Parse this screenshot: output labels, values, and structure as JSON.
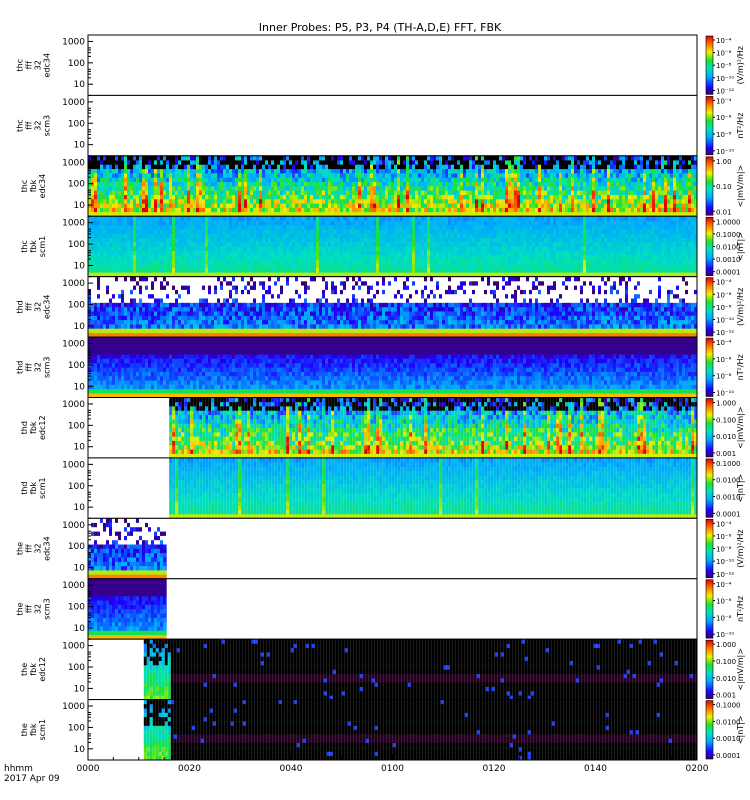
{
  "chart_data": {
    "type": "heatmap",
    "title": "Inner Probes: P5, P3, P4 (TH-A,D,E) FFT, FBK",
    "x_axis": {
      "label": "hhmm",
      "date_label": "2017 Apr 09",
      "range": [
        "0000",
        "0200"
      ],
      "ticks": [
        "0000",
        "0020",
        "0040",
        "0100",
        "0120",
        "0140",
        "0200"
      ]
    },
    "y_ticks": [
      "1000",
      "100",
      "10"
    ],
    "y_range_hz": [
      3,
      2000
    ],
    "y_scale": "log",
    "colormap": "rainbow",
    "panels": [
      {
        "ylabel": [
          "thc",
          "fff",
          "32",
          "edc34"
        ],
        "cbar": {
          "label": "(V/m)²/Hz",
          "ticks": [
            "10⁻⁴",
            "10⁻⁶",
            "10⁻⁸",
            "10⁻¹⁰",
            "10⁻¹²"
          ]
        },
        "data": {
          "start_min": null,
          "end_min": null,
          "pattern": "none"
        }
      },
      {
        "ylabel": [
          "thc",
          "fff",
          "32",
          "scm3"
        ],
        "cbar": {
          "label": "nT²/Hz",
          "ticks": [
            "10⁻⁴",
            "10⁻⁶",
            "10⁻⁸",
            "10⁻¹⁰"
          ]
        },
        "data": {
          "start_min": null,
          "end_min": null,
          "pattern": "none"
        }
      },
      {
        "ylabel": [
          "thc",
          "fbk",
          "edc34"
        ],
        "cbar": {
          "label": "<|mV/m|>",
          "ticks": [
            "1.00",
            "0.10",
            "0.01"
          ]
        },
        "data": {
          "start_min": 0,
          "end_min": 120,
          "pattern": "fbk-e"
        }
      },
      {
        "ylabel": [
          "thc",
          "fbk",
          "scm1"
        ],
        "cbar": {
          "label": "<|nT|>",
          "ticks": [
            "1.0000",
            "0.1000",
            "0.0100",
            "0.0010",
            "0.0001"
          ]
        },
        "data": {
          "start_min": 0,
          "end_min": 120,
          "pattern": "fbk-b"
        }
      },
      {
        "ylabel": [
          "thd",
          "fff",
          "32",
          "edc34"
        ],
        "cbar": {
          "label": "(V/m)²/Hz",
          "ticks": [
            "10⁻⁴",
            "10⁻⁶",
            "10⁻⁸",
            "10⁻¹⁰",
            "10⁻¹²"
          ]
        },
        "data": {
          "start_min": 0,
          "end_min": 120,
          "pattern": "fff-e"
        }
      },
      {
        "ylabel": [
          "thd",
          "fff",
          "32",
          "scm3"
        ],
        "cbar": {
          "label": "nT²/Hz",
          "ticks": [
            "10⁻⁴",
            "10⁻⁶",
            "10⁻⁸",
            "10⁻¹⁰"
          ]
        },
        "data": {
          "start_min": 0,
          "end_min": 120,
          "pattern": "fff-b"
        }
      },
      {
        "ylabel": [
          "thd",
          "fbk",
          "edc12"
        ],
        "cbar": {
          "label": "<|mV/m|>",
          "ticks": [
            "1.000",
            "0.100",
            "0.010",
            "0.001"
          ]
        },
        "data": {
          "start_min": 16,
          "end_min": 120,
          "pattern": "fbk-e"
        }
      },
      {
        "ylabel": [
          "thd",
          "fbk",
          "scm1"
        ],
        "cbar": {
          "label": "<|nT|>",
          "ticks": [
            "0.1000",
            "0.0100",
            "0.0010",
            "0.0001"
          ]
        },
        "data": {
          "start_min": 16,
          "end_min": 120,
          "pattern": "fbk-b"
        }
      },
      {
        "ylabel": [
          "the",
          "fff",
          "32",
          "edc34"
        ],
        "cbar": {
          "label": "(V/m)²/Hz",
          "ticks": [
            "10⁻⁴",
            "10⁻⁶",
            "10⁻⁸",
            "10⁻¹⁰",
            "10⁻¹²"
          ]
        },
        "data": {
          "start_min": 0,
          "end_min": 15.5,
          "pattern": "fff-e"
        }
      },
      {
        "ylabel": [
          "the",
          "fff",
          "32",
          "scm3"
        ],
        "cbar": {
          "label": "nT²/Hz",
          "ticks": [
            "10⁻⁴",
            "10⁻⁶",
            "10⁻⁸",
            "10⁻¹⁰"
          ]
        },
        "data": {
          "start_min": 0,
          "end_min": 15.5,
          "pattern": "fff-b"
        }
      },
      {
        "ylabel": [
          "the",
          "fbk",
          "edc12"
        ],
        "cbar": {
          "label": "<|mV/m|>",
          "ticks": [
            "1.000",
            "0.100",
            "0.010",
            "0.001"
          ]
        },
        "data": {
          "start_min": 11,
          "end_min": 120,
          "pattern": "fbk-dark"
        }
      },
      {
        "ylabel": [
          "the",
          "fbk",
          "scm1"
        ],
        "cbar": {
          "label": "<|nT|>",
          "ticks": [
            "0.1000",
            "0.0100",
            "0.0010",
            "0.0001"
          ]
        },
        "data": {
          "start_min": 11,
          "end_min": 120,
          "pattern": "fbk-dark"
        }
      }
    ]
  }
}
